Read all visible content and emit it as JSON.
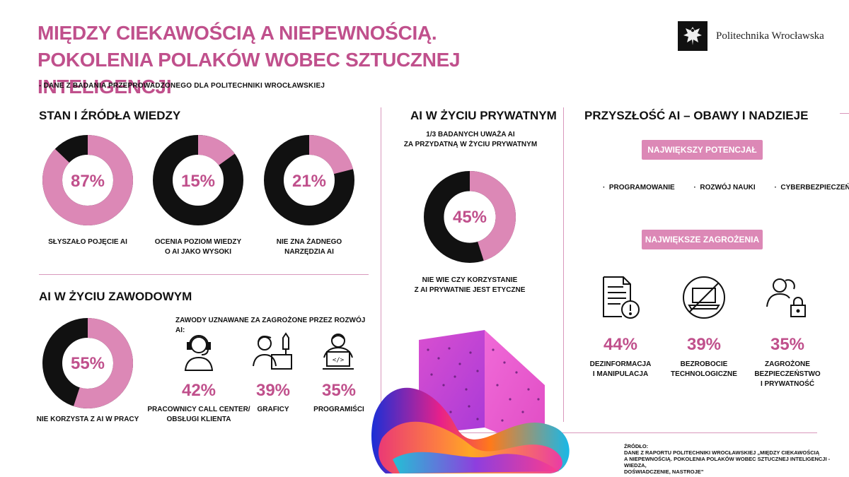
{
  "header": {
    "title_line1": "MIĘDZY CIEKAWOŚCIĄ A NIEPEWNOŚCIĄ.",
    "title_line2": "POKOLENIA POLAKÓW WOBEC SZTUCZNEJ INTELIGENCJI",
    "subtitle": "- DANE Z BADANIA PRZEPROWADZONEGO DLA POLITECHNIKI WROCŁAWSKIEJ",
    "logo_text": "Politechnika Wrocławska"
  },
  "colors": {
    "accent": "#c0508c",
    "pink": "#dc88b6",
    "dark": "#111111",
    "divider": "#d898bc"
  },
  "knowledge": {
    "heading": "STAN I ŹRÓDŁA WIEDZY",
    "items": [
      {
        "percent": "87%",
        "value": 87,
        "caption_line1": "SŁYSZAŁO POJĘCIE AI",
        "caption_line2": ""
      },
      {
        "percent": "15%",
        "value": 15,
        "caption_line1": "OCENIA POZIOM WIEDZY",
        "caption_line2": "O AI JAKO WYSOKI"
      },
      {
        "percent": "21%",
        "value": 21,
        "caption_line1": "NIE ZNA ŻADNEGO",
        "caption_line2": "NARZĘDZIA AI"
      }
    ]
  },
  "work": {
    "heading": "AI W ŻYCIU ZAWODOWYM",
    "donut": {
      "percent": "55%",
      "value": 55,
      "caption": "NIE KORZYSTA Z AI W PRACY"
    },
    "jobs_title": "ZAWODY UZNAWANE ZA ZAGROŻONE PRZEZ ROZWÓJ AI:",
    "jobs": [
      {
        "percent": "42%",
        "icon": "call-center-headset-icon",
        "caption_line1": "PRACOWNICY CALL CENTER/",
        "caption_line2": "OBSŁUGI KLIENTA"
      },
      {
        "percent": "39%",
        "icon": "graphic-designer-icon",
        "caption_line1": "GRAFICY",
        "caption_line2": ""
      },
      {
        "percent": "35%",
        "icon": "programmer-icon",
        "caption_line1": "PROGRAMIŚCI",
        "caption_line2": ""
      }
    ]
  },
  "private": {
    "heading": "AI W ŻYCIU PRYWATNYM",
    "note_line1": "1/3 BADANYCH UWAŻA AI",
    "note_line2": "ZA PRZYDATNĄ W ŻYCIU PRYWATNYM",
    "donut": {
      "percent": "45%",
      "value": 45,
      "caption_line1": "NIE WIE CZY KORZYSTANIE",
      "caption_line2": "Z AI PRYWATNIE JEST ETYCZNE"
    }
  },
  "future": {
    "heading": "PRZYSZŁOŚĆ AI – OBAWY I NADZIEJE",
    "potential_label": "NAJWIĘKSZY POTENCJAŁ",
    "potential_items": [
      "PROGRAMOWANIE",
      "ROZWÓJ NAUKI",
      "CYBERBEZPIECZEŃSTWO"
    ],
    "threats_label": "NAJWIĘKSZE ZAGROŻENIA",
    "threats": [
      {
        "percent": "44%",
        "icon": "document-warning-icon",
        "caption_line1": "DEZINFORMACJA",
        "caption_line2": "I MANIPULACJA",
        "caption_line3": ""
      },
      {
        "percent": "39%",
        "icon": "laptop-crossed-icon",
        "caption_line1": "BEZROBOCIE",
        "caption_line2": "TECHNOLOGICZNE",
        "caption_line3": ""
      },
      {
        "percent": "35%",
        "icon": "users-lock-icon",
        "caption_line1": "ZAGROŻONE",
        "caption_line2": "BEZPIECZEŃSTWO",
        "caption_line3": "I PRYWATNOŚĆ"
      }
    ]
  },
  "source": {
    "label": "ŹRÓDŁO:",
    "line1": "DANE Z RAPORTU POLITECHNIKI WROCŁAWSKIEJ „MIĘDZY CIEKAWOŚCIĄ",
    "line2": "A NIEPEWNOŚCIĄ. POKOLENIA POLAKÓW WOBEC SZTUCZNEJ INTELIGENCJI - WIEDZA,",
    "line3": "DOŚWIADCZENIE, NASTROJE”"
  }
}
